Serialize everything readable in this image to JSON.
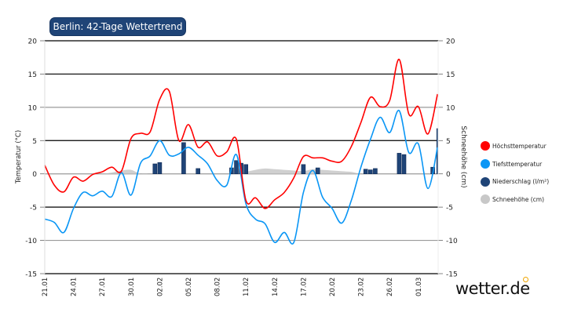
{
  "title": "Berlin: 42-Tage Wettertrend",
  "logo": "wetter.de",
  "chart_data": {
    "type": "line",
    "title": "Berlin: 42-Tage Wettertrend",
    "ylabel": "Temperatur (°C)",
    "ylabel_right": "Schneehöhe (cm)",
    "ylim": [
      -15,
      20
    ],
    "ylim_right": [
      -15,
      20
    ],
    "yticks": [
      20,
      15,
      10,
      5,
      0,
      -5,
      -10,
      -15
    ],
    "grid": true,
    "legend_position": "right",
    "xtick_labels": [
      "21.01",
      "24.01",
      "27.01",
      "30.01",
      "02.02",
      "05.02",
      "08.02",
      "11.02",
      "14.02",
      "17.02",
      "20.02",
      "23.02",
      "26.02",
      "01.03"
    ],
    "dates": [
      "21.01",
      "22.01",
      "23.01",
      "24.01",
      "25.01",
      "26.01",
      "27.01",
      "28.01",
      "29.01",
      "30.01",
      "31.01",
      "01.02",
      "02.02",
      "03.02",
      "04.02",
      "05.02",
      "06.02",
      "07.02",
      "08.02",
      "09.02",
      "10.02",
      "11.02",
      "12.02",
      "13.02",
      "14.02",
      "15.02",
      "16.02",
      "17.02",
      "18.02",
      "19.02",
      "20.02",
      "21.02",
      "22.02",
      "23.02",
      "24.02",
      "25.02",
      "26.02",
      "27.02",
      "28.02",
      "01.03",
      "02.03",
      "03.03"
    ],
    "series": [
      {
        "name": "Höchsttemperatur",
        "color": "#ff0000",
        "type": "line",
        "values": [
          1.3,
          -1.7,
          -2.7,
          -0.5,
          -1.1,
          -0.1,
          0.3,
          1.0,
          0.4,
          5.3,
          6.1,
          6.3,
          11.2,
          12.4,
          5.0,
          7.4,
          4.0,
          4.8,
          2.7,
          3.3,
          5.2,
          -4.0,
          -3.6,
          -5.2,
          -3.9,
          -2.8,
          -0.6,
          2.6,
          2.4,
          2.4,
          1.9,
          1.9,
          4.1,
          7.7,
          11.5,
          10.1,
          11.0,
          17.2,
          9.0,
          10.1,
          6.0,
          12.0
        ]
      },
      {
        "name": "Tiefsttemperatur",
        "color": "#0a96f5",
        "type": "line",
        "values": [
          -6.8,
          -7.3,
          -8.8,
          -5.2,
          -2.8,
          -3.3,
          -2.6,
          -3.4,
          0.2,
          -3.2,
          1.6,
          2.7,
          5.0,
          2.8,
          3.0,
          4.0,
          2.8,
          1.5,
          -1.0,
          -1.7,
          2.9,
          -4.5,
          -6.8,
          -7.5,
          -10.3,
          -8.8,
          -10.3,
          -2.8,
          0.5,
          -3.5,
          -5.2,
          -7.4,
          -4.0,
          1.0,
          5.2,
          8.5,
          6.2,
          9.5,
          3.2,
          4.5,
          -2.2,
          4.0
        ]
      },
      {
        "name": "Niederschlag (l/m²)",
        "color": "#1f4477",
        "type": "bar",
        "points": [
          {
            "date": "01.02",
            "hour": 12,
            "value": 1.5
          },
          {
            "date": "02.02",
            "hour": 0,
            "value": 1.7
          },
          {
            "date": "04.02",
            "hour": 12,
            "value": 4.7
          },
          {
            "date": "06.02",
            "hour": 0,
            "value": 0.8
          },
          {
            "date": "09.02",
            "hour": 12,
            "value": 0.9
          },
          {
            "date": "10.02",
            "hour": 0,
            "value": 2.0
          },
          {
            "date": "10.02",
            "hour": 12,
            "value": 1.6
          },
          {
            "date": "11.02",
            "hour": 0,
            "value": 1.4
          },
          {
            "date": "17.02",
            "hour": 0,
            "value": 1.4
          },
          {
            "date": "18.02",
            "hour": 12,
            "value": 0.9
          },
          {
            "date": "23.02",
            "hour": 12,
            "value": 0.7
          },
          {
            "date": "24.02",
            "hour": 0,
            "value": 0.6
          },
          {
            "date": "24.02",
            "hour": 12,
            "value": 0.8
          },
          {
            "date": "27.02",
            "hour": 0,
            "value": 3.1
          },
          {
            "date": "27.02",
            "hour": 12,
            "value": 2.9
          },
          {
            "date": "02.03",
            "hour": 12,
            "value": 1.0
          },
          {
            "date": "03.03",
            "hour": 0,
            "value": 6.8
          }
        ]
      },
      {
        "name": "Schneehöhe (cm)",
        "color": "#c8c8c8",
        "type": "area",
        "values": [
          0,
          0,
          0,
          0,
          0,
          0,
          0,
          0.2,
          0.5,
          0.6,
          0,
          0,
          0,
          0,
          0,
          0,
          0,
          0,
          0,
          0,
          0,
          0.3,
          0.6,
          0.8,
          0.7,
          0.6,
          0.5,
          0.4,
          0.7,
          0.6,
          0.5,
          0.4,
          0.3,
          0,
          0,
          0,
          0,
          0,
          0,
          0,
          0,
          0
        ]
      }
    ]
  }
}
